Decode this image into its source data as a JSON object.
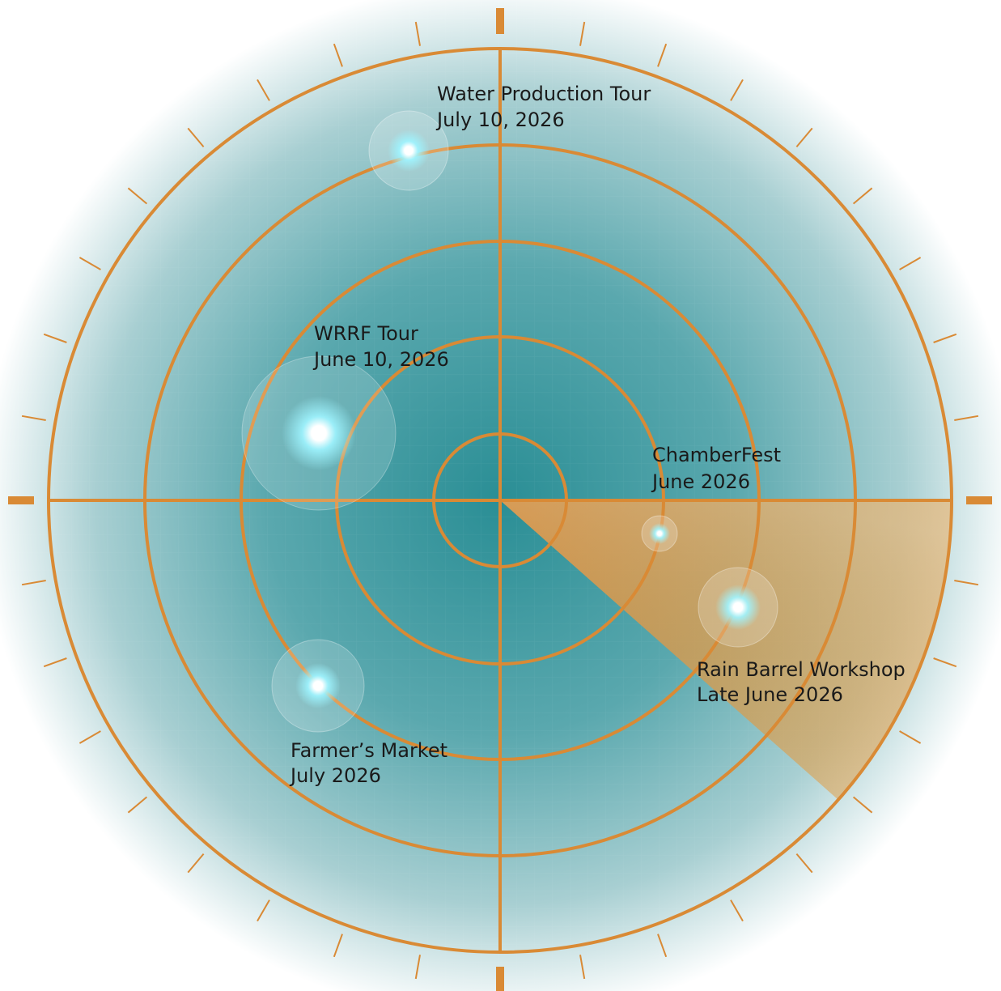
{
  "colors": {
    "accent": "#d98a35",
    "center": "#2a8e95",
    "edge": "#ffffff",
    "text": "#1a1a1a"
  },
  "events": [
    {
      "name": "Water Production Tour",
      "date": "July 10, 2026",
      "size": "medium"
    },
    {
      "name": "WRRF Tour",
      "date": "June 10, 2026",
      "size": "large"
    },
    {
      "name": "ChamberFest",
      "date": "June 2026",
      "size": "small"
    },
    {
      "name": "Rain Barrel Workshop",
      "date": "Late June 2026",
      "size": "medium"
    },
    {
      "name": "Farmer’s Market",
      "date": "July 2026",
      "size": "medium"
    }
  ]
}
